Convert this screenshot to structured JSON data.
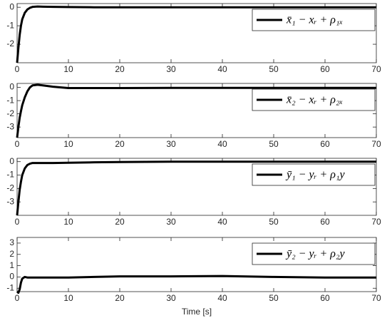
{
  "chart_data": [
    {
      "type": "line",
      "x": [
        0,
        0.25,
        0.5,
        0.75,
        1,
        1.5,
        2,
        2.5,
        3,
        4,
        5,
        7,
        10,
        15,
        20,
        30,
        40,
        50,
        60,
        70
      ],
      "series": [
        {
          "name": "x̄₁ − xᵣ + ρ₁ₓ",
          "color": "#000000",
          "values": [
            -3,
            -2.2,
            -1.5,
            -1.0,
            -0.65,
            -0.3,
            -0.12,
            -0.03,
            0.02,
            0.04,
            0.03,
            0.02,
            0.01,
            0,
            0,
            0,
            0,
            0,
            0,
            0
          ]
        }
      ],
      "xlim": [
        0,
        70
      ],
      "xticks": [
        0,
        10,
        20,
        30,
        40,
        50,
        60,
        70
      ],
      "ylim": [
        -3,
        0.2
      ],
      "yticks": [
        0,
        -1,
        -2
      ],
      "legend": "upper right"
    },
    {
      "type": "line",
      "x": [
        0,
        0.25,
        0.5,
        0.75,
        1,
        1.5,
        2,
        2.5,
        3,
        4,
        5,
        7,
        10,
        15,
        20,
        30,
        40,
        50,
        60,
        70
      ],
      "series": [
        {
          "name": "x̄₂ − xᵣ + ρ₂ₓ",
          "color": "#000000",
          "values": [
            -3.8,
            -3.0,
            -2.3,
            -1.8,
            -1.35,
            -0.75,
            -0.3,
            0,
            0.15,
            0.2,
            0.15,
            0.05,
            -0.05,
            -0.05,
            -0.05,
            -0.04,
            -0.04,
            -0.04,
            -0.04,
            -0.04
          ]
        }
      ],
      "xlim": [
        0,
        70
      ],
      "xticks": [
        0,
        10,
        20,
        30,
        40,
        50,
        60,
        70
      ],
      "ylim": [
        -3.8,
        0.3
      ],
      "yticks": [
        0,
        -1,
        -2,
        -3
      ],
      "legend": "upper right"
    },
    {
      "type": "line",
      "x": [
        0,
        0.25,
        0.5,
        0.75,
        1,
        1.5,
        2,
        2.5,
        3,
        4,
        5,
        7,
        10,
        15,
        20,
        30,
        40,
        50,
        60,
        70
      ],
      "series": [
        {
          "name": "ȳ₁ − yᵣ + ρ₁y",
          "color": "#000000",
          "values": [
            -4,
            -3,
            -2.1,
            -1.5,
            -1.0,
            -0.5,
            -0.25,
            -0.15,
            -0.1,
            -0.1,
            -0.1,
            -0.1,
            -0.08,
            -0.05,
            -0.03,
            0,
            0,
            0,
            0,
            0
          ]
        }
      ],
      "xlim": [
        0,
        70
      ],
      "xticks": [
        0,
        10,
        20,
        30,
        40,
        50,
        60,
        70
      ],
      "ylim": [
        -4,
        0.25
      ],
      "yticks": [
        0,
        -1,
        -2,
        -3
      ],
      "legend": "upper right"
    },
    {
      "type": "line",
      "x": [
        0,
        0.25,
        0.5,
        0.75,
        1,
        1.5,
        2,
        2.5,
        3,
        4,
        5,
        7,
        10,
        15,
        20,
        30,
        40,
        50,
        60,
        70
      ],
      "series": [
        {
          "name": "ȳ₂ − yᵣ + ρ₂y",
          "color": "#000000",
          "values": [
            -1.3,
            -1.4,
            -1.1,
            -0.5,
            -0.15,
            0,
            -0.05,
            -0.05,
            -0.05,
            -0.05,
            -0.05,
            -0.05,
            -0.05,
            0,
            0.05,
            0.05,
            0.08,
            0,
            -0.05,
            -0.05
          ]
        }
      ],
      "xlim": [
        0,
        70
      ],
      "xticks": [
        0,
        10,
        20,
        30,
        40,
        50,
        60,
        70
      ],
      "ylim": [
        -1.3,
        3.5
      ],
      "yticks": [
        3,
        2,
        1,
        0,
        -1
      ],
      "xlabel": "Time [s]",
      "legend": "upper right"
    }
  ]
}
